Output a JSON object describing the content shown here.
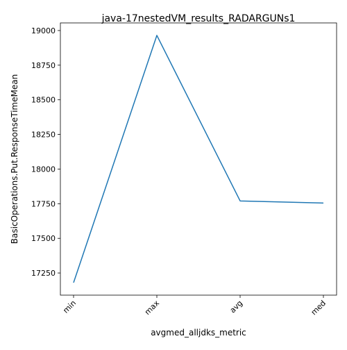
{
  "chart_data": {
    "type": "line",
    "title": "java-17nestedVM_results_RADARGUNs1",
    "xlabel": "avgmed_alljdks_metric",
    "ylabel": "BasicOperations.Put.ResponseTimeMean",
    "categories": [
      "min",
      "max",
      "avg",
      "med"
    ],
    "series": [
      {
        "values": [
          17180,
          18965,
          17770,
          17755
        ]
      }
    ],
    "ylim": [
      17090,
      19055
    ],
    "yticks": [
      17250,
      17500,
      17750,
      18000,
      18250,
      18500,
      18750,
      19000
    ],
    "grid": false,
    "legend": "none",
    "line_color": "#1f77b4"
  }
}
